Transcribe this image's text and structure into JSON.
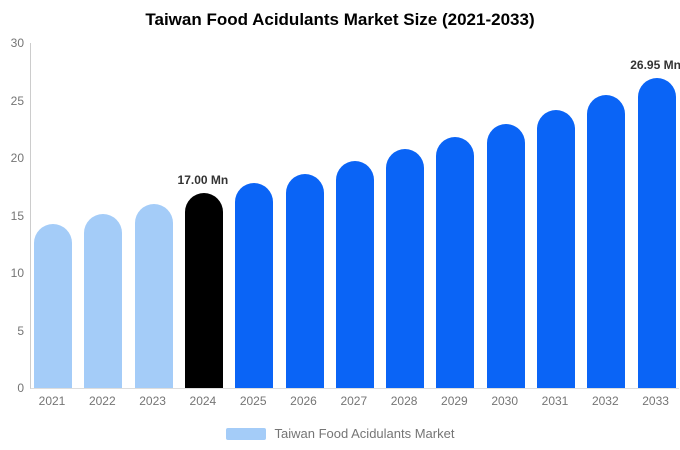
{
  "chart_data": {
    "type": "bar",
    "title": "Taiwan Food Acidulants Market Size (2021-2033)",
    "unit": "Mn",
    "categories": [
      "2021",
      "2022",
      "2023",
      "2024",
      "2025",
      "2026",
      "2027",
      "2028",
      "2029",
      "2030",
      "2031",
      "2032",
      "2033"
    ],
    "values": [
      14.3,
      15.1,
      16.0,
      17.0,
      17.8,
      18.65,
      19.7,
      20.75,
      21.8,
      23.0,
      24.15,
      25.45,
      26.95
    ],
    "bar_colors": [
      "#a4ccf8",
      "#a4ccf8",
      "#a4ccf8",
      "#000000",
      "#0a64f6",
      "#0a64f6",
      "#0a64f6",
      "#0a64f6",
      "#0a64f6",
      "#0a64f6",
      "#0a64f6",
      "#0a64f6",
      "#0a64f6"
    ],
    "annotations": [
      {
        "category": "2024",
        "index": 3,
        "text": "17.00 Mn"
      },
      {
        "category": "2033",
        "index": 12,
        "text": "26.95 Mn"
      }
    ],
    "ylim": [
      0,
      30
    ],
    "yticks": [
      0,
      5,
      10,
      15,
      20,
      25,
      30
    ],
    "grid": false,
    "xlabel": "",
    "ylabel": "",
    "legend": {
      "position": "bottom",
      "label": "Taiwan Food Acidulants Market",
      "swatch_color": "#a4ccf8"
    },
    "axis_color": "#cccccc",
    "tick_label_color": "#757575",
    "annotation_color": "#333333"
  }
}
